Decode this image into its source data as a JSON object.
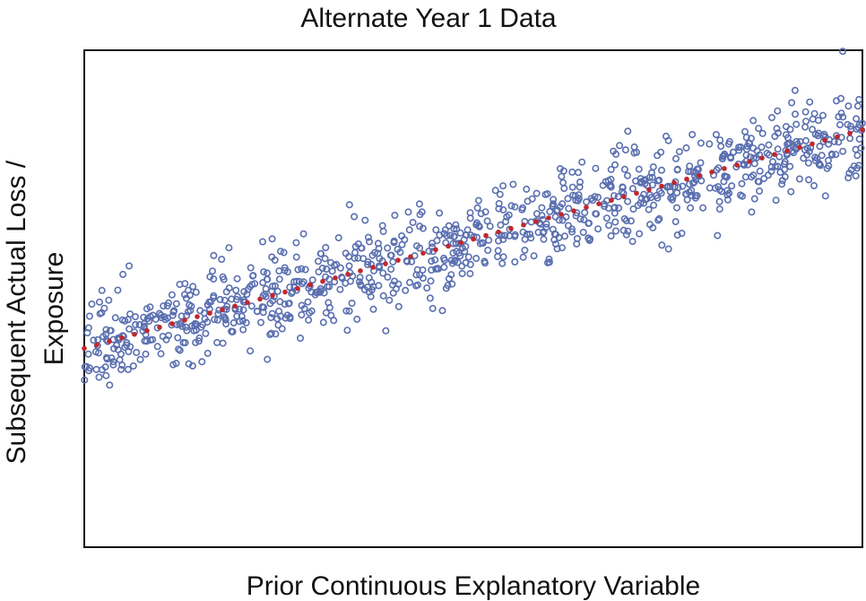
{
  "chart_data": {
    "type": "scatter",
    "title": "Alternate Year 1 Data",
    "xlabel": "Prior Continuous Explanatory Variable",
    "ylabel": [
      "Subsequent Actual Loss /",
      "Exposure"
    ],
    "xlim": [
      0,
      1
    ],
    "ylim": [
      0,
      1
    ],
    "grid": false,
    "legend": "none",
    "colors": {
      "points": "#5a6fb0",
      "trend": "#c0282d",
      "axes": "#111111",
      "background": "#ffffff"
    },
    "series": [
      {
        "style": "open-circle",
        "n": 1000,
        "trend": {
          "intercept": 0.4,
          "slope": 0.44
        },
        "noise_sd": 0.045,
        "seed": 7
      },
      {
        "style": "dotted-line",
        "x": [
          0,
          1
        ],
        "y": [
          0.4,
          0.84
        ]
      }
    ]
  }
}
